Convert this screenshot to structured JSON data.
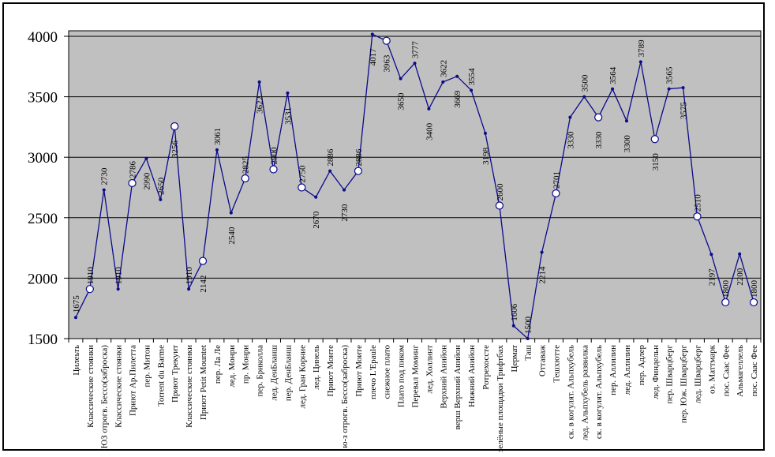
{
  "chart_data": {
    "type": "line",
    "title": "",
    "xlabel": "",
    "ylabel": "",
    "ylim": [
      1500,
      4050
    ],
    "yticks": [
      1500,
      2000,
      2500,
      3000,
      3500,
      4000
    ],
    "grid": true,
    "legend": "none",
    "plot_bg": "#c0c0c0",
    "line_color": "#0a0a8c",
    "points": [
      {
        "label": "Цилеьть",
        "value": 1675,
        "data_label": "1675",
        "marker": "dot"
      },
      {
        "label": "Классические стоянки",
        "value": 1910,
        "data_label": "1910",
        "marker": "circle"
      },
      {
        "label": "ЮЗ отрогв. Бессо(заброска)",
        "value": 2730,
        "data_label": "2730",
        "marker": "dot"
      },
      {
        "label": "Классические стоянки",
        "value": 1910,
        "data_label": "1910",
        "marker": "dot"
      },
      {
        "label": "Приют Ар.Пилетта",
        "value": 2786,
        "data_label": "2786",
        "marker": "circle"
      },
      {
        "label": "пер. Митон",
        "value": 2990,
        "data_label": "2990",
        "marker": "dot"
      },
      {
        "label": "Torrent du Barme",
        "value": 2650,
        "data_label": "2650",
        "marker": "dot"
      },
      {
        "label": "Приют Трекуит",
        "value": 3256,
        "data_label": "3256",
        "marker": "circle"
      },
      {
        "label": "Классические стоянки",
        "value": 1910,
        "data_label": "1910",
        "marker": "dot"
      },
      {
        "label": "Приют Petit Mountet",
        "value": 2142,
        "data_label": "2142",
        "marker": "circle"
      },
      {
        "label": "пер. Ла Ле",
        "value": 3061,
        "data_label": "3061",
        "marker": "dot"
      },
      {
        "label": "лед. Монри",
        "value": 2540,
        "data_label": "2540",
        "marker": "dot"
      },
      {
        "label": "пр. Монри",
        "value": 2825,
        "data_label": "2825",
        "marker": "circle"
      },
      {
        "label": "пер. Бриколла",
        "value": 3622,
        "data_label": "3622",
        "marker": "dot"
      },
      {
        "label": "лед. ДенБланш",
        "value": 2900,
        "data_label": "2900",
        "marker": "circle"
      },
      {
        "label": "пер. ДенБланш",
        "value": 3531,
        "data_label": "3531",
        "marker": "dot"
      },
      {
        "label": "лед. Гран Корние",
        "value": 2750,
        "data_label": "2750",
        "marker": "circle"
      },
      {
        "label": "лед. Цинель",
        "value": 2670,
        "data_label": "2670",
        "marker": "dot"
      },
      {
        "label": "Приют Монте",
        "value": 2886,
        "data_label": "2886",
        "marker": "dot"
      },
      {
        "label": "ю-з отрогв. Бессо(заброска)",
        "value": 2730,
        "data_label": "2730",
        "marker": "dot"
      },
      {
        "label": "Приют Моите",
        "value": 2886,
        "data_label": "2886",
        "marker": "circle"
      },
      {
        "label": "плечо L'Epaule",
        "value": 4017,
        "data_label": "4017",
        "marker": "dot"
      },
      {
        "label": "снежное плато",
        "value": 3963,
        "data_label": "3963",
        "marker": "circle"
      },
      {
        "label": "Плато под пиком",
        "value": 3650,
        "data_label": "3650",
        "marker": "dot"
      },
      {
        "label": "Перевал Моминг",
        "value": 3777,
        "data_label": "3777",
        "marker": "dot"
      },
      {
        "label": "лед. Холлинт",
        "value": 3400,
        "data_label": "3400",
        "marker": "dot"
      },
      {
        "label": "Верхний Анийон",
        "value": 3622,
        "data_label": "3622",
        "marker": "dot"
      },
      {
        "label": "верш Верхний Анийон",
        "value": 3669,
        "data_label": "3669",
        "marker": "dot"
      },
      {
        "label": "Нижний Анийон",
        "value": 3554,
        "data_label": "3554",
        "marker": "dot"
      },
      {
        "label": "Ротрехоссте",
        "value": 3198,
        "data_label": "3198",
        "marker": "dot"
      },
      {
        "label": "зелёные площадки Трифтбах",
        "value": 2600,
        "data_label": "2600",
        "marker": "circle"
      },
      {
        "label": "Цермат",
        "value": 1606,
        "data_label": "1606",
        "marker": "dot"
      },
      {
        "label": "Таш",
        "value": 1500,
        "data_label": "1500",
        "marker": "dot"
      },
      {
        "label": "Оттаваж",
        "value": 2214,
        "data_label": "2214",
        "marker": "dot"
      },
      {
        "label": "Тешхютте",
        "value": 2701,
        "data_label": "2701",
        "marker": "circle"
      },
      {
        "label": "ск. в когулят. Альпхубель",
        "value": 3330,
        "data_label": "3330",
        "marker": "dot"
      },
      {
        "label": "лед. Альпхубель развилка",
        "value": 3500,
        "data_label": "3500",
        "marker": "dot"
      },
      {
        "label": "ск. в когулят. Альпхубель",
        "value": 3330,
        "data_label": "3330",
        "marker": "circle"
      },
      {
        "label": "пер. Аллилин",
        "value": 3564,
        "data_label": "3564",
        "marker": "dot"
      },
      {
        "label": "лед. Аллилин",
        "value": 3300,
        "data_label": "3300",
        "marker": "dot"
      },
      {
        "label": "пер. Адлер",
        "value": 3789,
        "data_label": "3789",
        "marker": "dot"
      },
      {
        "label": "лед. Финдельн",
        "value": 3150,
        "data_label": "3150",
        "marker": "circle"
      },
      {
        "label": "пер. Шварцберг",
        "value": 3565,
        "data_label": "3565",
        "marker": "dot"
      },
      {
        "label": "пер. Юж. Шварцберг",
        "value": 3575,
        "data_label": "3575",
        "marker": "dot"
      },
      {
        "label": "лед. Шварцберг",
        "value": 2510,
        "data_label": "2510",
        "marker": "circle"
      },
      {
        "label": "оз. Маттмарк",
        "value": 2197,
        "data_label": "2197",
        "marker": "dot"
      },
      {
        "label": "пос. Саас Фее",
        "value": 1800,
        "data_label": "1800",
        "marker": "circle"
      },
      {
        "label": "Альмагеллель",
        "value": 2200,
        "data_label": "2200",
        "marker": "dot"
      },
      {
        "label": "пос. Саас Фее",
        "value": 1800,
        "data_label": "1800",
        "marker": "circle"
      }
    ]
  }
}
